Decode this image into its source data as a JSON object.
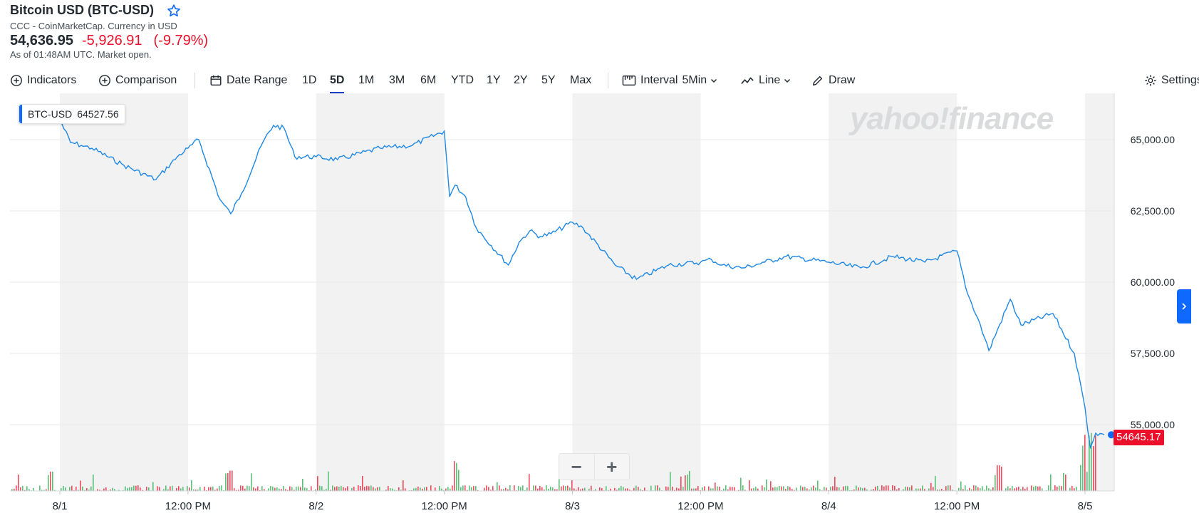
{
  "quote": {
    "title": "Bitcoin USD (BTC-USD)",
    "source": "CCC - CoinMarketCap. Currency in USD",
    "price": "54,636.95",
    "change": "-5,926.91",
    "change_pct": "(-9.79%)",
    "as_of": "As of 01:48AM UTC. Market open."
  },
  "toolbar": {
    "indicators": "Indicators",
    "comparison": "Comparison",
    "date_range": "Date Range",
    "ranges": [
      "1D",
      "5D",
      "1M",
      "3M",
      "6M",
      "YTD",
      "1Y",
      "2Y",
      "5Y",
      "Max"
    ],
    "active_range": "5D",
    "interval_label": "Interval",
    "interval_value": "5Min",
    "line": "Line",
    "draw": "Draw",
    "settings": "Settings"
  },
  "tooltip": {
    "symbol": "BTC-USD",
    "value": "64527.56"
  },
  "last_price_label": "54645.17",
  "watermark": "yahoo!finance",
  "zoom": {
    "minus": "−",
    "plus": "+"
  },
  "colors": {
    "line": "#1e88e5",
    "down": "#eb0f29",
    "up": "#21ad4b",
    "shade": "#f2f2f2",
    "accent": "#0f69ff"
  },
  "chart_data": {
    "type": "line",
    "series": [
      {
        "x": [
          "8/1 00:00",
          "8/1 01:00",
          "8/1 02:00",
          "8/1 03:00",
          "8/1 06:00",
          "8/1 09:00",
          "8/1 11:00",
          "8/1 12:00",
          "8/1 13:00",
          "8/1 15:00",
          "8/1 16:00",
          "8/1 17:00",
          "8/1 19:00",
          "8/1 20:00",
          "8/1 21:00",
          "8/1 22:00",
          "8/2 00:00",
          "8/2 02:00",
          "8/2 06:00",
          "8/2 09:00",
          "8/2 12:00",
          "8/2 12:30",
          "8/2 13:00",
          "8/2 14:00",
          "8/2 15:00",
          "8/2 18:00",
          "8/2 19:00",
          "8/2 20:00",
          "8/2 21:00",
          "8/2 22:00",
          "8/3 00:00",
          "8/3 01:00",
          "8/3 04:00",
          "8/3 06:00",
          "8/3 09:00",
          "8/3 12:00",
          "8/3 13:00",
          "8/3 14:00",
          "8/3 16:00",
          "8/3 18:00",
          "8/3 20:00",
          "8/4 00:00",
          "8/4 03:00",
          "8/4 06:00",
          "8/4 09:00",
          "8/4 12:00",
          "8/4 13:00",
          "8/4 14:00",
          "8/4 15:00",
          "8/4 17:00",
          "8/4 18:00",
          "8/4 21:00",
          "8/4 23:00",
          "8/5 00:00",
          "8/5 00:30",
          "8/5 01:00",
          "8/5 01:48"
        ],
        "values": [
          65700,
          64900,
          64800,
          64700,
          64100,
          63600,
          64400,
          64700,
          65000,
          62900,
          62400,
          63100,
          64900,
          65500,
          65400,
          64400,
          64400,
          64300,
          64700,
          64800,
          65300,
          63000,
          63400,
          63000,
          61900,
          60600,
          61400,
          61800,
          61600,
          61700,
          62100,
          61900,
          60600,
          60100,
          60600,
          60700,
          60800,
          60600,
          60500,
          60700,
          60900,
          60700,
          60500,
          60900,
          60700,
          61100,
          59600,
          58700,
          57600,
          59400,
          58500,
          58900,
          57500,
          55600,
          54200,
          54700,
          54645.17
        ]
      }
    ],
    "y_ticks": [
      "65,000.00",
      "62,500.00",
      "60,000.00",
      "57,500.00",
      "55,000.00"
    ],
    "x_ticks": [
      "8/1",
      "12:00 PM",
      "8/2",
      "12:00 PM",
      "8/3",
      "12:00 PM",
      "8/4",
      "12:00 PM",
      "8/5"
    ],
    "ylim": [
      52000,
      66500
    ],
    "grid": true,
    "volume": true
  }
}
